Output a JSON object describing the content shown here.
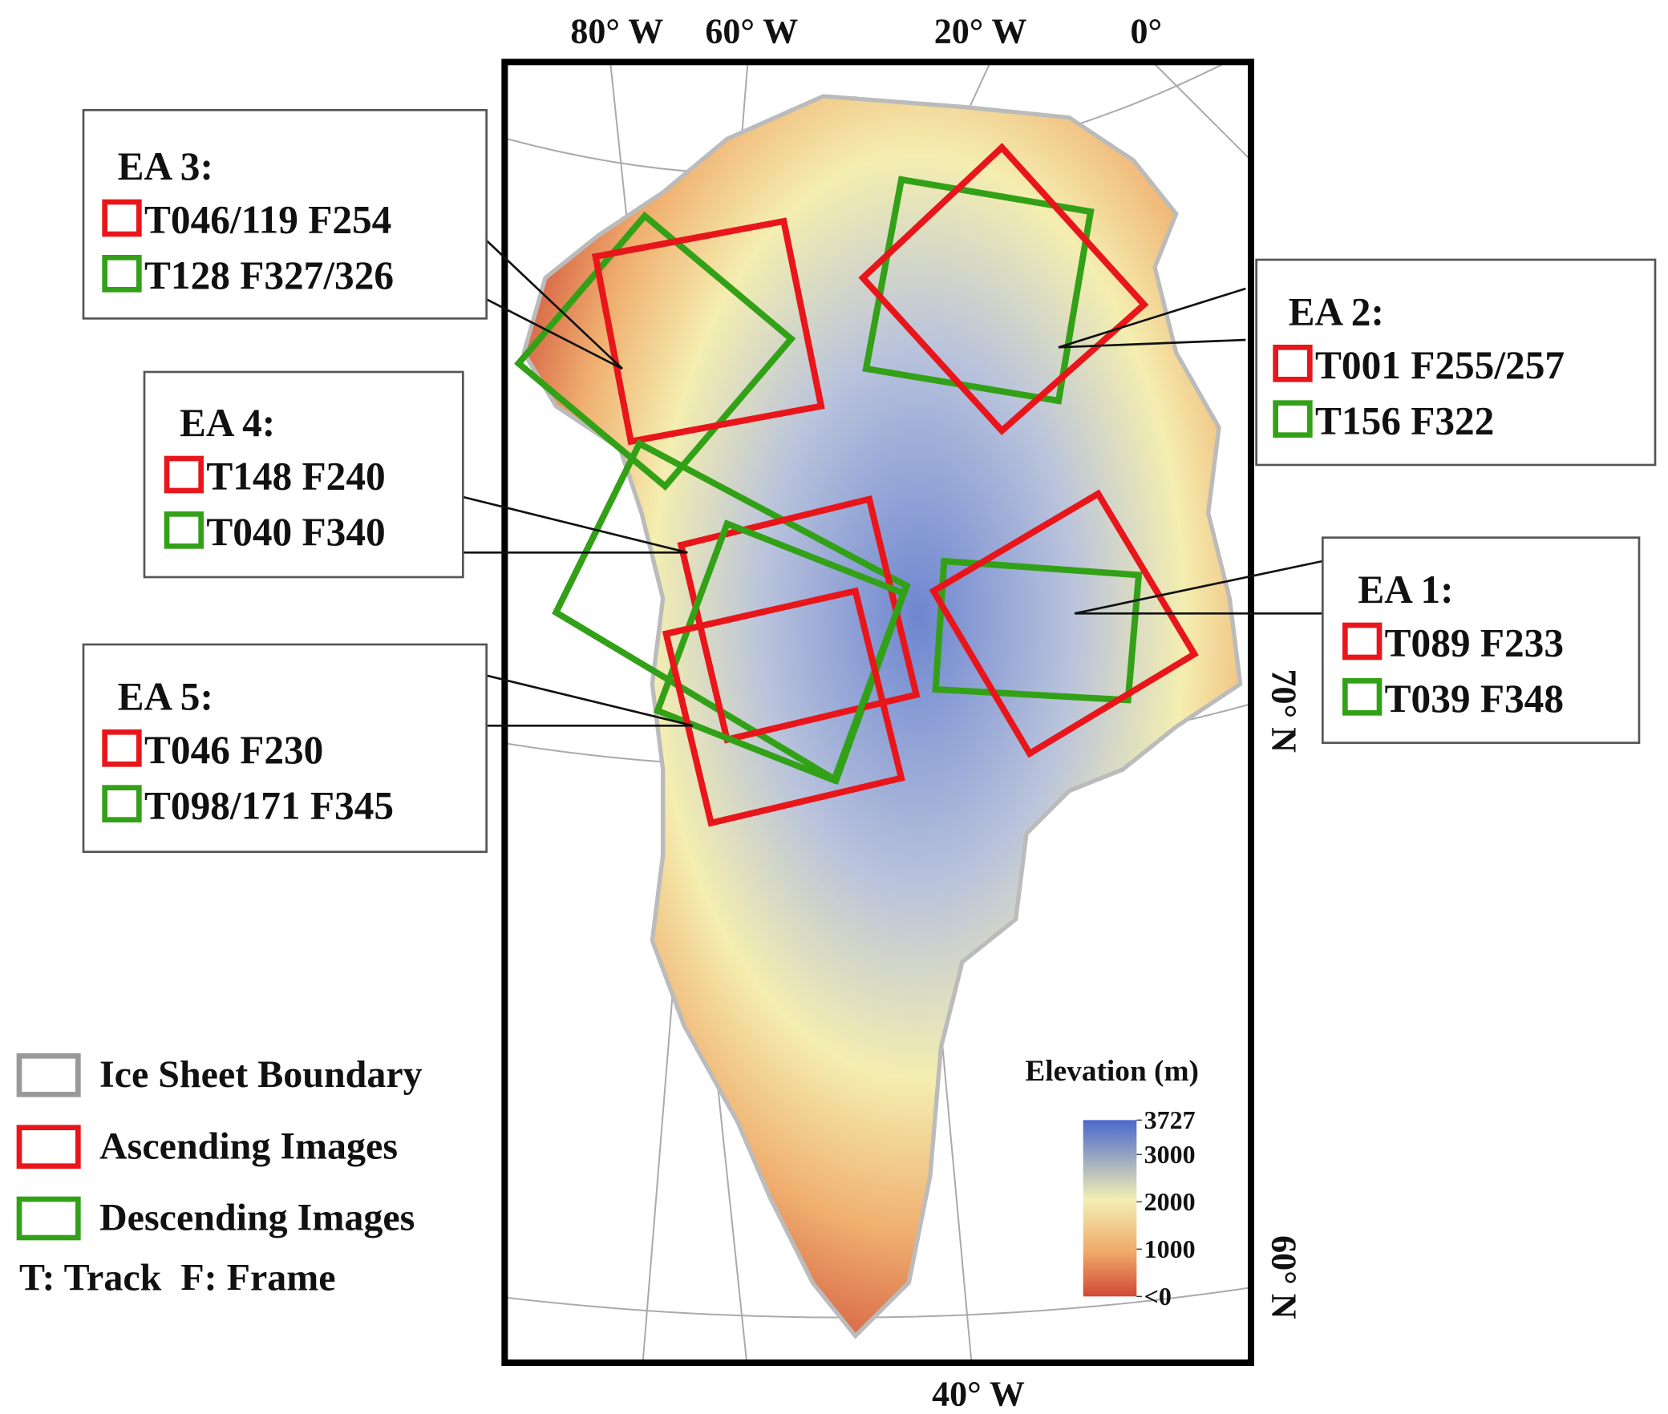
{
  "map": {
    "lon_labels": [
      "80° W",
      "60° W",
      "20° W",
      "0°",
      "40° W"
    ],
    "lat_labels": [
      "70° N",
      "60° N"
    ]
  },
  "areas": [
    {
      "name": "EA 3:",
      "ascending": "T046/119 F254",
      "descending": "T128 F327/326"
    },
    {
      "name": "EA 2:",
      "ascending": "T001 F255/257",
      "descending": "T156 F322"
    },
    {
      "name": "EA 4:",
      "ascending": "T148 F240",
      "descending": "T040 F340"
    },
    {
      "name": "EA 1:",
      "ascending": "T089 F233",
      "descending": "T039 F348"
    },
    {
      "name": "EA 5:",
      "ascending": "T046 F230",
      "descending": "T098/171 F345"
    }
  ],
  "legend": {
    "items": [
      "Ice Sheet Boundary",
      "Ascending Images",
      "Descending Images"
    ],
    "note": "T: Track  F: Frame"
  },
  "colorbar": {
    "title": "Elevation (m)",
    "range": [
      0,
      3727
    ],
    "ticks": [
      3727,
      3000,
      2000,
      1000,
      {
        "value": 0,
        "label": "<0"
      }
    ]
  }
}
